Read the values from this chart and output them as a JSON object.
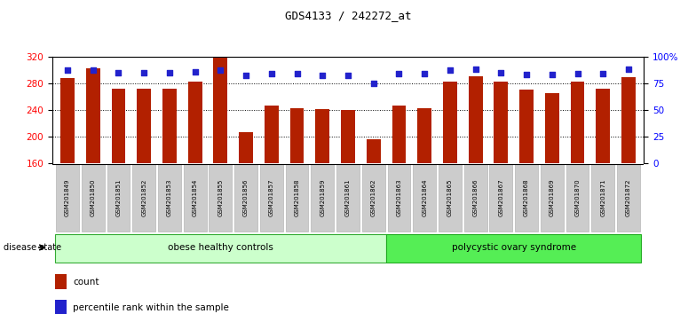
{
  "title": "GDS4133 / 242272_at",
  "samples": [
    "GSM201849",
    "GSM201850",
    "GSM201851",
    "GSM201852",
    "GSM201853",
    "GSM201854",
    "GSM201855",
    "GSM201856",
    "GSM201857",
    "GSM201858",
    "GSM201859",
    "GSM201861",
    "GSM201862",
    "GSM201863",
    "GSM201864",
    "GSM201865",
    "GSM201866",
    "GSM201867",
    "GSM201868",
    "GSM201869",
    "GSM201870",
    "GSM201871",
    "GSM201872"
  ],
  "counts": [
    288,
    302,
    272,
    272,
    272,
    282,
    318,
    207,
    247,
    243,
    241,
    240,
    196,
    247,
    243,
    282,
    291,
    282,
    270,
    265,
    282,
    272,
    289
  ],
  "percentiles": [
    87,
    87,
    85,
    85,
    85,
    86,
    87,
    82,
    84,
    84,
    82,
    82,
    75,
    84,
    84,
    87,
    88,
    85,
    83,
    83,
    84,
    84,
    88
  ],
  "groups": [
    "obese",
    "obese",
    "obese",
    "obese",
    "obese",
    "obese",
    "obese",
    "obese",
    "obese",
    "obese",
    "obese",
    "obese",
    "obese",
    "poly",
    "poly",
    "poly",
    "poly",
    "poly",
    "poly",
    "poly",
    "poly",
    "poly",
    "poly"
  ],
  "obese_label": "obese healthy controls",
  "poly_label": "polycystic ovary syndrome",
  "disease_state_label": "disease state",
  "ylim_left": [
    160,
    320
  ],
  "ylim_right": [
    0,
    100
  ],
  "yticks_left": [
    160,
    200,
    240,
    280,
    320
  ],
  "yticks_right": [
    0,
    25,
    50,
    75,
    100
  ],
  "ytick_labels_right": [
    "0",
    "25",
    "50",
    "75",
    "100%"
  ],
  "bar_color": "#B22000",
  "dot_color": "#2222CC",
  "obese_bg": "#CCFFCC",
  "poly_bg": "#55EE55",
  "tick_label_bg": "#CCCCCC",
  "legend_count_label": "count",
  "legend_pct_label": "percentile rank within the sample",
  "n_obese": 13,
  "grid_lines": [
    200,
    240,
    280
  ]
}
